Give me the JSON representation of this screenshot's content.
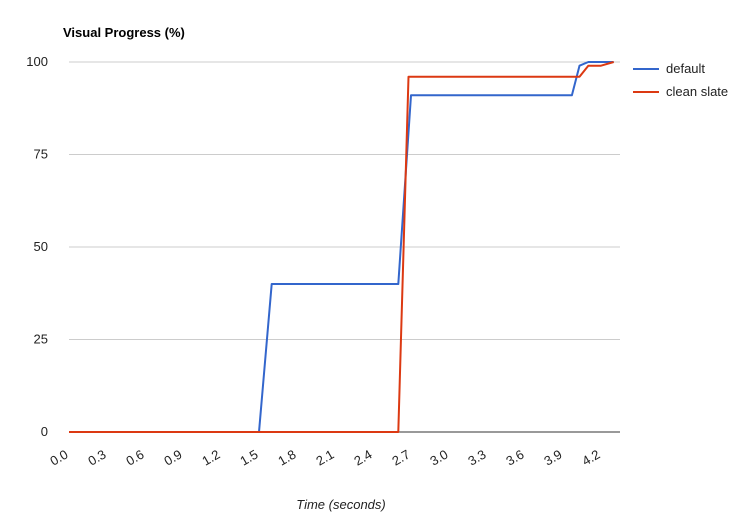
{
  "chart_data": {
    "type": "line",
    "title": "Visual Progress (%)",
    "xlabel": "Time (seconds)",
    "ylabel": "",
    "xlim": [
      0,
      4.35
    ],
    "ylim": [
      0,
      100
    ],
    "x_ticks": [
      "0.0",
      "0.3",
      "0.6",
      "0.9",
      "1.2",
      "1.5",
      "1.8",
      "2.1",
      "2.4",
      "2.7",
      "3.0",
      "3.3",
      "3.6",
      "3.9",
      "4.2"
    ],
    "y_ticks": [
      "0",
      "25",
      "50",
      "75",
      "100"
    ],
    "grid": true,
    "legend_position": "right",
    "series": [
      {
        "name": "default",
        "color": "#3366cc",
        "points": [
          [
            0,
            0
          ],
          [
            1.5,
            0
          ],
          [
            1.6,
            40
          ],
          [
            2.6,
            40
          ],
          [
            2.7,
            91
          ],
          [
            3.97,
            91
          ],
          [
            4.03,
            99
          ],
          [
            4.1,
            100
          ],
          [
            4.3,
            100
          ]
        ]
      },
      {
        "name": "clean slate",
        "color": "#dc3912",
        "points": [
          [
            0,
            0
          ],
          [
            2.6,
            0
          ],
          [
            2.68,
            96
          ],
          [
            4.03,
            96
          ],
          [
            4.1,
            99
          ],
          [
            4.2,
            99
          ],
          [
            4.3,
            100
          ]
        ]
      }
    ]
  }
}
